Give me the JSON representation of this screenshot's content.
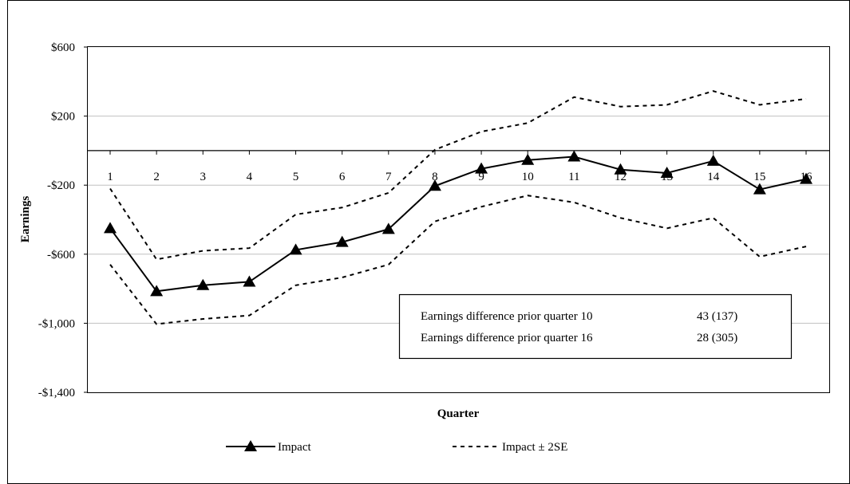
{
  "chart_data": {
    "type": "line",
    "xlabel": "Quarter",
    "ylabel": "Earnings",
    "ylim": [
      -1400,
      600
    ],
    "yticks": [
      600,
      200,
      -200,
      -600,
      -1000,
      -1400
    ],
    "ytick_labels": [
      "$600",
      "$200",
      "-$200",
      "-$600",
      "-$1,000",
      "-$1,400"
    ],
    "categories": [
      "1",
      "2",
      "3",
      "4",
      "5",
      "6",
      "7",
      "8",
      "9",
      "10",
      "11",
      "12",
      "13",
      "14",
      "15",
      "16"
    ],
    "grid": true,
    "legend_position": "bottom",
    "series": [
      {
        "name": "Impact",
        "style": "solid",
        "marker": "triangle",
        "color": "#000000",
        "values": [
          -450,
          -815,
          -780,
          -760,
          -575,
          -530,
          -455,
          -205,
          -105,
          -55,
          -35,
          -110,
          -130,
          -60,
          -225,
          -165
        ]
      },
      {
        "name": "Impact ± 2SE",
        "style": "dashed",
        "color": "#000000",
        "values": [
          -220,
          -630,
          -580,
          -565,
          -370,
          -330,
          -245,
          5,
          110,
          160,
          310,
          255,
          265,
          345,
          265,
          300
        ]
      },
      {
        "style": "dashed",
        "color": "#000000",
        "values": [
          -660,
          -1005,
          -975,
          -955,
          -780,
          -735,
          -660,
          -410,
          -325,
          -260,
          -300,
          -390,
          -450,
          -390,
          -615,
          -555
        ]
      }
    ],
    "annotation": {
      "rows": [
        {
          "label": "Earnings difference prior quarter 10",
          "value": "43 (137)"
        },
        {
          "label": "Earnings difference prior quarter 16",
          "value": "28 (305)"
        }
      ]
    }
  }
}
